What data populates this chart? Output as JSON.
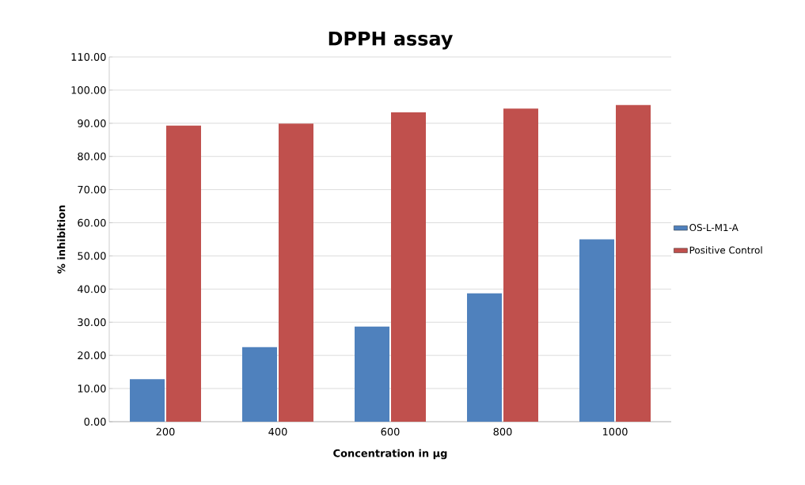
{
  "chart_data": {
    "type": "bar",
    "title": "DPPH assay",
    "xlabel": "Concentration in µg",
    "ylabel": "% inhibition",
    "categories": [
      "200",
      "400",
      "600",
      "800",
      "1000"
    ],
    "series": [
      {
        "name": "OS-L-M1-A",
        "color": "#4f81bd",
        "values": [
          12.8,
          22.5,
          28.7,
          38.7,
          55.0
        ]
      },
      {
        "name": "Positive Control",
        "color": "#c0504d",
        "values": [
          89.3,
          89.9,
          93.3,
          94.4,
          95.5
        ]
      }
    ],
    "ylim": [
      0,
      110
    ],
    "yticks": [
      {
        "value": 0,
        "label": "0.00"
      },
      {
        "value": 10,
        "label": "10.00"
      },
      {
        "value": 20,
        "label": "20.00"
      },
      {
        "value": 30,
        "label": "30.00"
      },
      {
        "value": 40,
        "label": "40.00"
      },
      {
        "value": 50,
        "label": "50.00"
      },
      {
        "value": 60,
        "label": "60.00"
      },
      {
        "value": 70,
        "label": "70.00"
      },
      {
        "value": 80,
        "label": "80.00"
      },
      {
        "value": 90,
        "label": "90.00"
      },
      {
        "value": 100,
        "label": "100.00"
      },
      {
        "value": 110,
        "label": "110.00"
      }
    ],
    "grid": "y",
    "legend": "right"
  }
}
